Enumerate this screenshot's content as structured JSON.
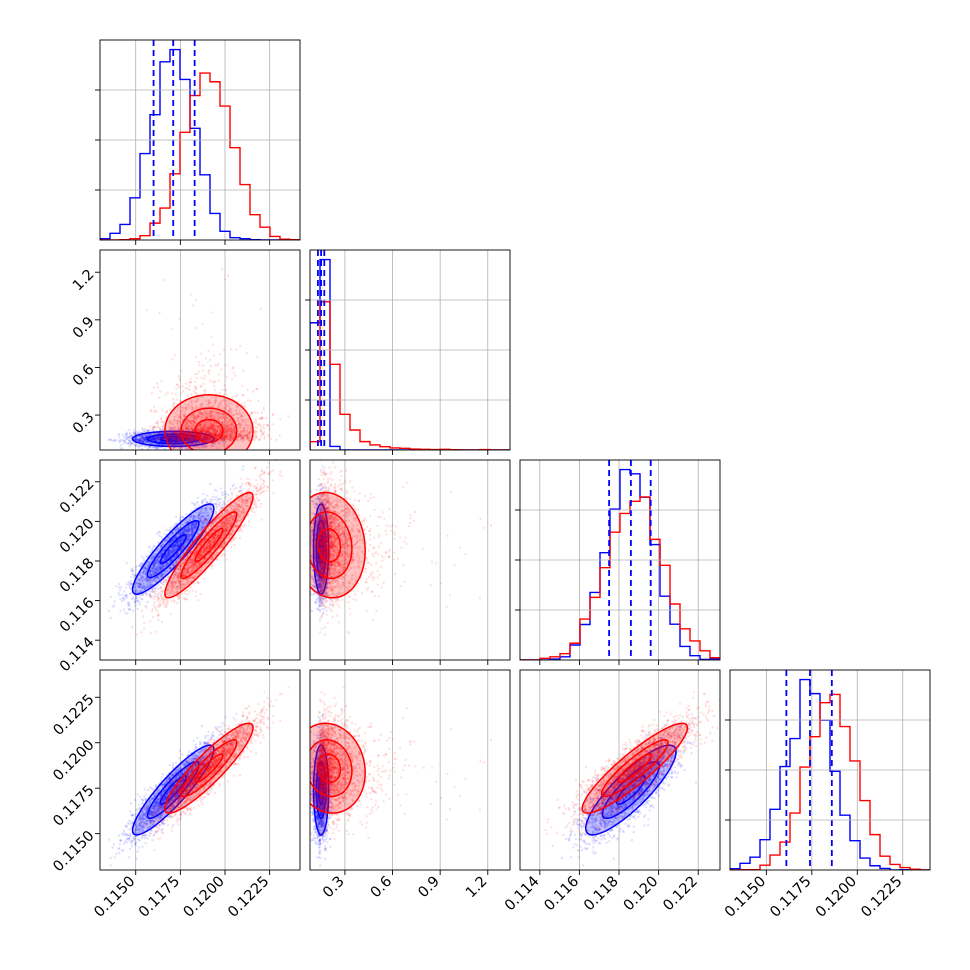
{
  "chart_data": {
    "type": "corner",
    "colors": {
      "blue": "#0000ff",
      "red": "#ff0000"
    },
    "params": [
      {
        "id": "p0",
        "range": [
          0.113,
          0.1242
        ],
        "ticks": [
          0.115,
          0.1175,
          0.12,
          0.1225
        ],
        "tick_labels": [
          "0.1150",
          "0.1175",
          "0.1200",
          "0.1225"
        ]
      },
      {
        "id": "p1",
        "range": [
          0.08,
          1.34
        ],
        "ticks": [
          0.3,
          0.6,
          0.9,
          1.2
        ],
        "tick_labels": [
          "0.3",
          "0.6",
          "0.9",
          "1.2"
        ]
      },
      {
        "id": "p2",
        "range": [
          0.113,
          0.1231
        ],
        "ticks": [
          0.114,
          0.116,
          0.118,
          0.12,
          0.122
        ],
        "tick_labels": [
          "0.114",
          "0.116",
          "0.118",
          "0.120",
          "0.122"
        ]
      },
      {
        "id": "p3",
        "range": [
          0.113,
          0.124
        ],
        "ticks": [
          0.115,
          0.1175,
          0.12,
          0.1225
        ],
        "tick_labels": [
          "0.1150",
          "0.1175",
          "0.1200",
          "0.1225"
        ]
      }
    ],
    "series": [
      {
        "color": "blue",
        "mean": [
          0.1171,
          0.15,
          0.1186,
          0.1174
        ],
        "std": [
          0.0012,
          0.025,
          0.0012,
          0.0013
        ],
        "corr": [
          [
            0,
            1,
            0.0
          ],
          [
            0,
            2,
            0.9
          ],
          [
            0,
            3,
            0.9
          ],
          [
            1,
            2,
            0.0
          ],
          [
            1,
            3,
            0.0
          ],
          [
            2,
            3,
            0.85
          ]
        ],
        "quantiles": [
          [
            0.116,
            0.1171,
            0.1183
          ],
          [
            0.13,
            0.15,
            0.17
          ],
          [
            0.1175,
            0.1186,
            0.1196
          ],
          [
            0.1161,
            0.1174,
            0.1186
          ]
        ]
      },
      {
        "color": "red",
        "mean": [
          0.1191,
          0.2,
          0.1188,
          0.1186
        ],
        "std": [
          0.0013,
          0.12,
          0.0014,
          0.0013
        ],
        "corr": [
          [
            0,
            1,
            0.0
          ],
          [
            0,
            2,
            0.92
          ],
          [
            0,
            3,
            0.9
          ],
          [
            1,
            2,
            -0.1
          ],
          [
            1,
            3,
            -0.1
          ],
          [
            2,
            3,
            0.9
          ]
        ]
      }
    ],
    "grid": true
  }
}
